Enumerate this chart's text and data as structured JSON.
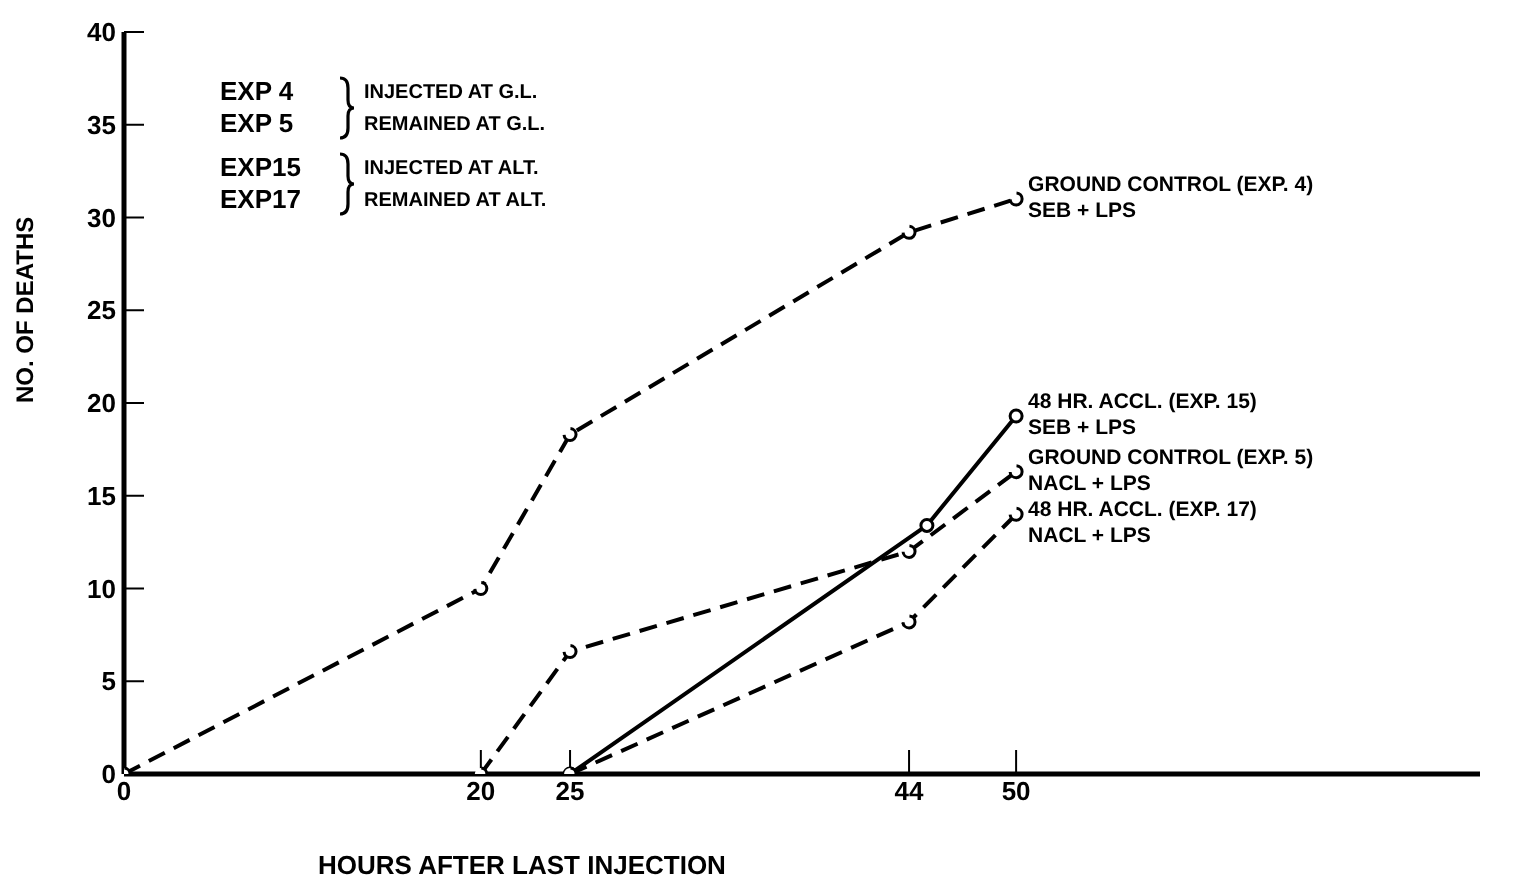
{
  "chart_data": {
    "type": "line",
    "xlabel": "HOURS AFTER LAST INJECTION",
    "ylabel": "NO. OF DEATHS",
    "xlim": [
      0,
      76
    ],
    "xticks": [
      0,
      20,
      25,
      44,
      50
    ],
    "ylim": [
      0,
      40
    ],
    "yticks": [
      0,
      5,
      10,
      15,
      20,
      25,
      30,
      35,
      40
    ],
    "grid": false,
    "legend": false,
    "marker": "circle",
    "series": [
      {
        "name": "GROUND CONTROL (EXP. 4)\nSEB + LPS",
        "color": "#000000",
        "line_style": "dashed",
        "x": [
          0,
          20,
          25,
          44,
          50
        ],
        "values": [
          0,
          10,
          18.3,
          29.2,
          31
        ]
      },
      {
        "name": "GROUND CONTROL (EXP. 5)\nNACL + LPS",
        "color": "#000000",
        "line_style": "dashed",
        "x": [
          20,
          25,
          44,
          50
        ],
        "values": [
          0,
          6.6,
          12,
          16.3
        ]
      },
      {
        "name": "48 HR. ACCL. (EXP. 15)\nSEB + LPS",
        "color": "#000000",
        "line_style": "solid",
        "x": [
          25,
          45,
          50
        ],
        "values": [
          0,
          13.4,
          19.3
        ]
      },
      {
        "name": "48 HR. ACCL. (EXP. 17)\nNACL + LPS",
        "color": "#000000",
        "line_style": "dashed",
        "x": [
          25,
          44,
          50
        ],
        "values": [
          0,
          8.2,
          14
        ]
      }
    ],
    "annotations": [
      "EXP 4",
      "EXP 5",
      "INJECTED AT G.L.",
      "REMAINED AT G.L.",
      "EXP15",
      "EXP17",
      "INJECTED AT ALT.",
      "REMAINED AT ALT."
    ]
  }
}
